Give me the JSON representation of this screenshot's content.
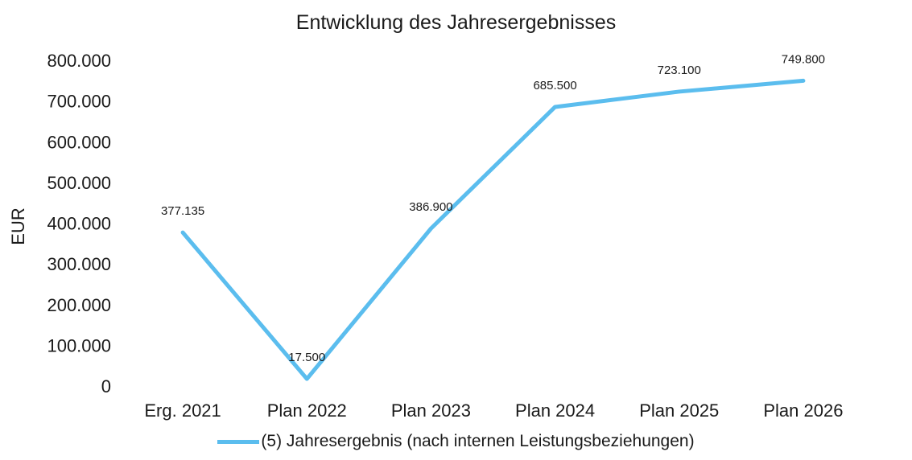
{
  "chart_data": {
    "type": "line",
    "title": "Entwicklung des Jahresergebnisses",
    "xlabel": "",
    "ylabel": "EUR",
    "categories": [
      "Erg. 2021",
      "Plan 2022",
      "Plan 2023",
      "Plan 2024",
      "Plan 2025",
      "Plan 2026"
    ],
    "series": [
      {
        "name": "(5) Jahresergebnis (nach internen Leistungsbeziehungen)",
        "values": [
          377135,
          17500,
          386900,
          685500,
          723100,
          749800
        ],
        "labels": [
          "377.135",
          "17.500",
          "386.900",
          "685.500",
          "723.100",
          "749.800"
        ],
        "color": "#5bbdee"
      }
    ],
    "ylim": [
      0,
      800000
    ],
    "yticks": [
      0,
      100000,
      200000,
      300000,
      400000,
      500000,
      600000,
      700000,
      800000
    ],
    "ytick_labels": [
      "0",
      "100.000",
      "200.000",
      "300.000",
      "400.000",
      "500.000",
      "600.000",
      "700.000",
      "800.000"
    ],
    "grid": false,
    "legend_position": "bottom"
  }
}
